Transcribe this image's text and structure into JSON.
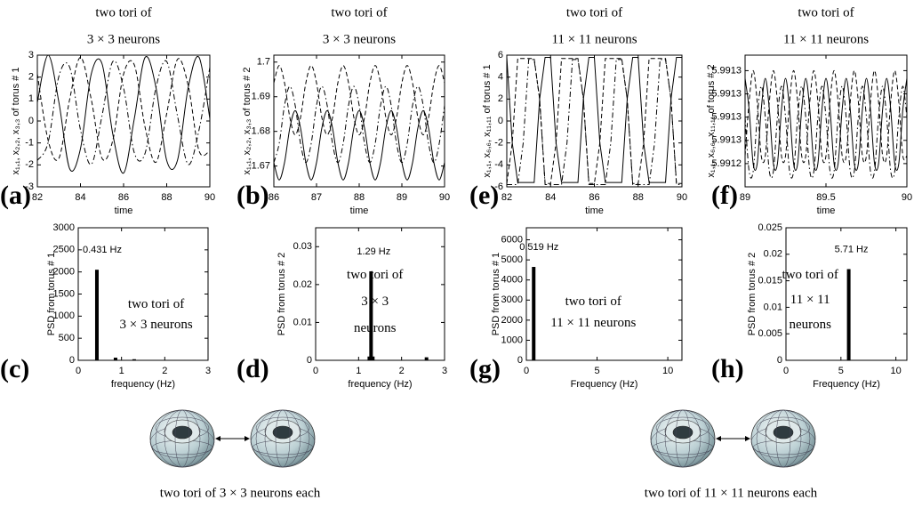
{
  "chart_data": [
    {
      "type": "line",
      "panel_label": "(a)",
      "title": [
        "two tori of",
        "3 × 3 neurons"
      ],
      "xlabel": "time",
      "ylabel": "x₁,₁, x₂,₂, x₃,₃ of torus # 1",
      "xlim": [
        82,
        90
      ],
      "ylim": [
        -3,
        3
      ],
      "xticks": [
        82,
        84,
        86,
        88,
        90
      ],
      "yticks": [
        -3,
        -2,
        -1,
        0,
        1,
        2,
        3
      ],
      "x": [
        82,
        82.5,
        83,
        83.5,
        84,
        84.5,
        85,
        85.5,
        86,
        86.5,
        87,
        87.5,
        88,
        88.5,
        89,
        89.5,
        90
      ],
      "series": [
        {
          "color": "#000000",
          "dash": "solid",
          "values": [
            0.85,
            3.0,
            0.85,
            -2.18,
            -1.26,
            2.14,
            2.61,
            -0.6,
            -2.37,
            0.12,
            2.9,
            1.54,
            -1.8,
            -1.79,
            1.54,
            2.9,
            0.11
          ]
        },
        {
          "color": "#000000",
          "dash": "dashed",
          "values": [
            2.14,
            -0.88,
            -1.7,
            0.99,
            2.9,
            0.99,
            -1.7,
            -0.88,
            2.14,
            2.55,
            -0.3,
            -1.88,
            0.34,
            2.81,
            1.6,
            -1.36,
            -1.36
          ]
        },
        {
          "color": "#000000",
          "dash": "dashdot",
          "values": [
            -1.8,
            -0.98,
            2.04,
            2.45,
            -0.4,
            -1.98,
            0.24,
            2.71,
            1.5,
            -1.46,
            -1.46,
            1.51,
            2.71,
            0.23,
            -1.98,
            -0.4,
            2.45
          ]
        }
      ]
    },
    {
      "type": "line",
      "panel_label": "(b)",
      "title": [
        "two tori of",
        "3 × 3 neurons"
      ],
      "xlabel": "time",
      "ylabel": "x₁,₁, x₂,₂, x₃,₃ of torus # 2",
      "xlim": [
        86,
        90
      ],
      "ylim": [
        1.664,
        1.702
      ],
      "xticks": [
        86,
        87,
        88,
        89,
        90
      ],
      "yticks": [
        1.67,
        1.68,
        1.69,
        1.7
      ],
      "x": [
        86,
        86.125,
        86.25,
        86.375,
        86.5,
        86.625,
        86.75,
        86.875,
        87,
        87.125,
        87.25,
        87.375,
        87.5,
        87.625,
        87.75,
        87.875,
        88,
        88.125,
        88.25,
        88.375,
        88.5,
        88.625,
        88.75,
        88.875,
        89,
        89.125,
        89.25,
        89.375,
        89.5,
        89.625,
        89.75,
        89.875,
        90
      ],
      "series": [
        {
          "color": "#000000",
          "dash": "solid",
          "values": [
            1.671,
            1.666,
            1.671,
            1.681,
            1.686,
            1.681,
            1.671,
            1.666,
            1.671,
            1.681,
            1.686,
            1.681,
            1.671,
            1.666,
            1.671,
            1.681,
            1.686,
            1.681,
            1.671,
            1.666,
            1.671,
            1.681,
            1.686,
            1.681,
            1.671,
            1.666,
            1.671,
            1.681,
            1.686,
            1.681,
            1.671,
            1.666,
            1.671
          ]
        },
        {
          "color": "#000000",
          "dash": "dashed",
          "values": [
            1.694,
            1.699,
            1.694,
            1.684,
            1.679,
            1.684,
            1.694,
            1.699,
            1.694,
            1.684,
            1.679,
            1.684,
            1.694,
            1.699,
            1.694,
            1.684,
            1.679,
            1.684,
            1.694,
            1.699,
            1.694,
            1.684,
            1.679,
            1.684,
            1.694,
            1.699,
            1.694,
            1.684,
            1.679,
            1.684,
            1.694,
            1.699,
            1.694
          ]
        },
        {
          "color": "#000000",
          "dash": "dashdot",
          "values": [
            1.671,
            1.6765,
            1.6875,
            1.693,
            1.6875,
            1.6765,
            1.671,
            1.6765,
            1.6875,
            1.693,
            1.6875,
            1.6765,
            1.671,
            1.6765,
            1.6875,
            1.693,
            1.6875,
            1.6765,
            1.671,
            1.6765,
            1.6875,
            1.693,
            1.6875,
            1.6765,
            1.671,
            1.6765,
            1.6875,
            1.693,
            1.6875,
            1.6765,
            1.671,
            1.6765,
            1.6875
          ]
        }
      ]
    },
    {
      "type": "bar",
      "panel_label": "(c)",
      "xlabel": "frequency (Hz)",
      "ylabel": "PSD from torus # 1",
      "annotation": "0.431 Hz",
      "inset_text": [
        "two tori of",
        "3 × 3 neurons"
      ],
      "xlim": [
        0,
        3
      ],
      "ylim": [
        0,
        3000
      ],
      "xticks": [
        0,
        1,
        2,
        3
      ],
      "yticks": [
        0,
        500,
        1000,
        1500,
        2000,
        2500,
        3000
      ],
      "color": "#000000",
      "x": [
        0.431,
        0.862,
        1.293
      ],
      "values": [
        2050,
        60,
        25
      ]
    },
    {
      "type": "bar",
      "panel_label": "(d)",
      "xlabel": "frequency (Hz)",
      "ylabel": "PSD from torus # 2",
      "annotation": "1.29 Hz",
      "inset_text": [
        "two tori of",
        "3 × 3",
        "neurons"
      ],
      "xlim": [
        0,
        3
      ],
      "ylim": [
        0,
        0.035
      ],
      "xticks": [
        0,
        1,
        2,
        3
      ],
      "yticks": [
        0,
        0.01,
        0.02,
        0.03
      ],
      "color": "#000000",
      "x": [
        1.25,
        1.29,
        1.33,
        2.58
      ],
      "values": [
        0.001,
        0.0235,
        0.001,
        0.0008
      ]
    },
    {
      "type": "line",
      "panel_label": "(e)",
      "title": [
        "two tori of",
        "11 × 11 neurons"
      ],
      "xlabel": "time",
      "ylabel": "x₁,₁, x₆,₆, x₁₁,₁₁ of torus # 1",
      "xlim": [
        82,
        90
      ],
      "ylim": [
        -6,
        6
      ],
      "xticks": [
        82,
        84,
        86,
        88,
        90
      ],
      "yticks": [
        -6,
        -4,
        -2,
        0,
        2,
        4,
        6
      ],
      "x": [
        82,
        82.25,
        82.5,
        82.75,
        83,
        83.25,
        83.5,
        83.75,
        84,
        84.25,
        84.5,
        84.75,
        85,
        85.25,
        85.5,
        85.75,
        86,
        86.25,
        86.5,
        86.75,
        87,
        87.25,
        87.5,
        87.75,
        88,
        88.25,
        88.5,
        88.75,
        89,
        89.25,
        89.5,
        89.75,
        90
      ],
      "series": [
        {
          "color": "#000000",
          "dash": "solid",
          "values": [
            5.8,
            -2,
            -5.6,
            -5.6,
            -5.6,
            -5.6,
            2,
            5.8,
            5.8,
            -2,
            -5.6,
            -5.6,
            -5.6,
            -5.6,
            2,
            5.8,
            5.8,
            -2,
            -5.6,
            -5.6,
            -5.6,
            -5.6,
            2,
            5.8,
            5.8,
            -2,
            -5.6,
            -5.6,
            -5.6,
            -5.6,
            2,
            5.8,
            5.8
          ]
        },
        {
          "color": "#000000",
          "dash": "dashed",
          "values": [
            -5.7,
            -2,
            5.7,
            5.7,
            5.7,
            5.7,
            2,
            -5.7,
            -5.7,
            -2,
            5.7,
            5.7,
            5.7,
            5.7,
            2,
            -5.7,
            -5.7,
            -2,
            5.7,
            5.7,
            5.7,
            5.7,
            2,
            -5.7,
            -5.7,
            -2,
            5.7,
            5.7,
            5.7,
            5.7,
            2,
            -5.7,
            -5.7
          ]
        },
        {
          "color": "#000000",
          "dash": "dashdot",
          "values": [
            -5.8,
            -5.8,
            -5.8,
            -2,
            5.6,
            5.6,
            2,
            -5.8,
            -5.8,
            -5.8,
            -5.8,
            -2,
            5.6,
            5.6,
            2,
            -5.8,
            -5.8,
            -5.8,
            -5.8,
            -2,
            5.6,
            5.6,
            2,
            -5.8,
            -5.8,
            -5.8,
            -5.8,
            -2,
            5.6,
            5.6,
            2,
            -5.8,
            -5.8
          ]
        }
      ]
    },
    {
      "type": "line",
      "panel_label": "(f)",
      "title": [
        "two tori of",
        "11 × 11 neurons"
      ],
      "xlabel": "time",
      "ylabel": "x₁,₁, x₆,₆, x₁₁,₁₁ of torus # 2",
      "xlim": [
        89,
        90
      ],
      "ylim": [
        5.99119,
        5.99136
      ],
      "xticks": [
        89,
        89.5,
        90
      ],
      "yticks": [
        {
          "value": 5.99122,
          "label": "5.9912"
        },
        {
          "value": 5.99125,
          "label": "5.9913"
        },
        {
          "value": 5.99128,
          "label": "5.9913"
        },
        {
          "value": 5.99131,
          "label": "5.9913"
        },
        {
          "value": 5.99134,
          "label": "5.9913"
        }
      ],
      "x": [
        89,
        89.025,
        89.05,
        89.075,
        89.1,
        89.125,
        89.15,
        89.175,
        89.2,
        89.225,
        89.25,
        89.275,
        89.3,
        89.325,
        89.35,
        89.375,
        89.4,
        89.425,
        89.45,
        89.475,
        89.5,
        89.525,
        89.55,
        89.575,
        89.6,
        89.625,
        89.65,
        89.675,
        89.7,
        89.725,
        89.75,
        89.775,
        89.8,
        89.825,
        89.85,
        89.875,
        89.9,
        89.925,
        89.95,
        89.975,
        90
      ],
      "series": [
        {
          "color": "#000000",
          "dash": "solid",
          "values": [
            5.99133,
            5.99129,
            5.99122,
            5.99122,
            5.99129,
            5.99133,
            5.99129,
            5.99122,
            5.99122,
            5.99129,
            5.99133,
            5.99129,
            5.99122,
            5.99122,
            5.99129,
            5.99133,
            5.99129,
            5.99122,
            5.99122,
            5.99129,
            5.99133,
            5.99129,
            5.99122,
            5.99122,
            5.99129,
            5.99133,
            5.99129,
            5.99122,
            5.99122,
            5.99129,
            5.99133,
            5.99129,
            5.99122,
            5.99122,
            5.99129,
            5.99133,
            5.99129,
            5.99122,
            5.99122,
            5.99129,
            5.99133
          ]
        },
        {
          "color": "#000000",
          "dash": "dashed",
          "values": [
            5.99123,
            5.9913,
            5.99134,
            5.9913,
            5.99123,
            5.99123,
            5.9913,
            5.99134,
            5.9913,
            5.99123,
            5.99123,
            5.9913,
            5.99134,
            5.9913,
            5.99123,
            5.99123,
            5.9913,
            5.99134,
            5.9913,
            5.99123,
            5.99123,
            5.9913,
            5.99134,
            5.9913,
            5.99123,
            5.99123,
            5.9913,
            5.99134,
            5.9913,
            5.99123,
            5.99123,
            5.9913,
            5.99134,
            5.9913,
            5.99123,
            5.99123,
            5.9913,
            5.99134,
            5.9913,
            5.99123,
            5.99123
          ]
        },
        {
          "color": "#000000",
          "dash": "dashdot",
          "values": [
            5.99128,
            5.99121,
            5.99121,
            5.99128,
            5.99132,
            5.99128,
            5.99121,
            5.99121,
            5.99128,
            5.99132,
            5.99128,
            5.99121,
            5.99121,
            5.99128,
            5.99132,
            5.99128,
            5.99121,
            5.99121,
            5.99128,
            5.99132,
            5.99128,
            5.99121,
            5.99121,
            5.99128,
            5.99132,
            5.99128,
            5.99121,
            5.99121,
            5.99128,
            5.99132,
            5.99128,
            5.99121,
            5.99121,
            5.99128,
            5.99132,
            5.99128,
            5.99121,
            5.99121,
            5.99128,
            5.99132,
            5.99128
          ]
        }
      ]
    },
    {
      "type": "bar",
      "panel_label": "(g)",
      "xlabel": "Frequency (Hz)",
      "ylabel": "PSD from torus # 1",
      "annotation": "0.519 Hz",
      "inset_text": [
        "two tori of",
        "11 × 11 neurons"
      ],
      "xlim": [
        0,
        11
      ],
      "ylim": [
        0,
        6600
      ],
      "xticks": [
        0,
        5,
        10
      ],
      "yticks": [
        0,
        1000,
        2000,
        3000,
        4000,
        5000,
        6000
      ],
      "color": "#000000",
      "x": [
        0.519
      ],
      "values": [
        4650
      ]
    },
    {
      "type": "bar",
      "panel_label": "(h)",
      "xlabel": "Frequency (Hz)",
      "ylabel": "PSD from torus # 2",
      "annotation": "5.71 Hz",
      "inset_text": [
        "two tori of",
        "11 × 11",
        "neurons"
      ],
      "xlim": [
        0,
        11
      ],
      "ylim": [
        0,
        0.025
      ],
      "xticks": [
        0,
        5,
        10
      ],
      "yticks": [
        0,
        0.005,
        0.01,
        0.015,
        0.02,
        0.025
      ],
      "color": "#000000",
      "x": [
        5.71
      ],
      "values": [
        0.0172
      ]
    }
  ],
  "captions": [
    "two tori of 3 × 3 neurons each",
    "two tori of 11 × 11 neurons each"
  ]
}
